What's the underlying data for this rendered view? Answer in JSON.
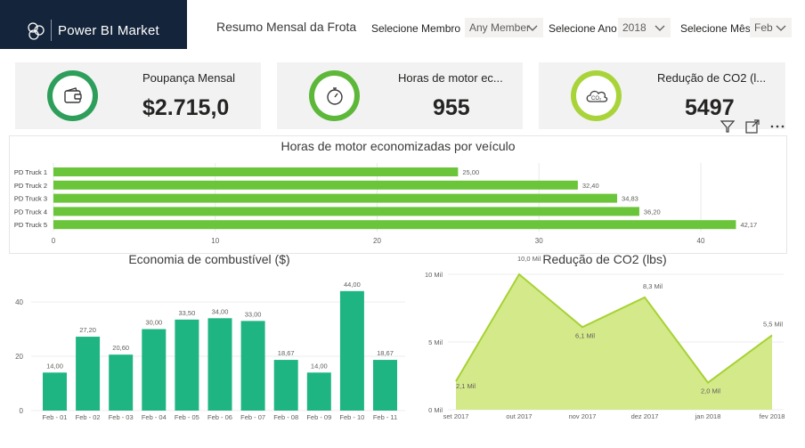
{
  "header": {
    "brand_name": "Power BI Market",
    "report_title": "Resumo Mensal da Frota"
  },
  "slicers": {
    "member_label": "Selecione Membro",
    "member_value": "Any Member",
    "year_label": "Selecione Ano",
    "year_value": "2018",
    "month_label": "Selecione Mês",
    "month_value": "Feb"
  },
  "kpis": [
    {
      "label": "Poupança Mensal",
      "value": "$2.715,0",
      "icon": "wallet-icon"
    },
    {
      "label": "Horas de motor ec...",
      "value": "955",
      "icon": "stopwatch-icon"
    },
    {
      "label": "Redução de CO2 (l...",
      "value": "5497",
      "icon": "co2-cloud-icon"
    }
  ],
  "colors": {
    "brand_bg": "#14243a",
    "kpi_ring_1": "#2e9e5b",
    "kpi_ring_2": "#5db83a",
    "kpi_ring_3": "#a8d43a",
    "hbar": "#6ac53a",
    "column": "#1fb583",
    "area_fill": "#d4e98a",
    "area_line": "#a6d234"
  },
  "chart_data": [
    {
      "type": "bar",
      "orientation": "horizontal",
      "title": "Horas de motor economizadas por veículo",
      "categories": [
        "PD Truck 1",
        "PD Truck 2",
        "PD Truck 3",
        "PD Truck 4",
        "PD Truck 5"
      ],
      "values": [
        25.0,
        32.4,
        34.83,
        36.2,
        42.17
      ],
      "labels": [
        "25,00",
        "32,40",
        "34,83",
        "36,20",
        "42,17"
      ],
      "xlim": [
        0,
        45
      ],
      "xticks": [
        0,
        10,
        20,
        30,
        40
      ]
    },
    {
      "type": "bar",
      "title": "Economia de combustível ($)",
      "categories": [
        "Feb - 01",
        "Feb - 02",
        "Feb - 03",
        "Feb - 04",
        "Feb - 05",
        "Feb - 06",
        "Feb - 07",
        "Feb - 08",
        "Feb - 09",
        "Feb - 10",
        "Feb - 11"
      ],
      "values": [
        14.0,
        27.2,
        20.6,
        30.0,
        33.5,
        34.0,
        33.0,
        18.67,
        14.0,
        44.0,
        18.67
      ],
      "labels": [
        "14,00",
        "27,20",
        "20,60",
        "30,00",
        "33,50",
        "34,00",
        "33,00",
        "18,67",
        "14,00",
        "44,00",
        "18,67"
      ],
      "ylim": [
        0,
        50
      ],
      "yticks": [
        0,
        20,
        40
      ]
    },
    {
      "type": "area",
      "title": "Redução de CO2 (lbs)",
      "categories": [
        "set 2017",
        "out 2017",
        "nov 2017",
        "dez 2017",
        "jan 2018",
        "fev 2018"
      ],
      "values": [
        2100,
        10000,
        6100,
        8300,
        2000,
        5500
      ],
      "labels": [
        "2,1 Mil",
        "10,0 Mil",
        "6,1 Mil",
        "8,3 Mil",
        "2,0 Mil",
        "5,5 Mil"
      ],
      "ylim": [
        0,
        10000
      ],
      "yticks": [
        0,
        5000,
        10000
      ],
      "ytick_labels": [
        "0 Mil",
        "5 Mil",
        "10 Mil"
      ]
    }
  ]
}
